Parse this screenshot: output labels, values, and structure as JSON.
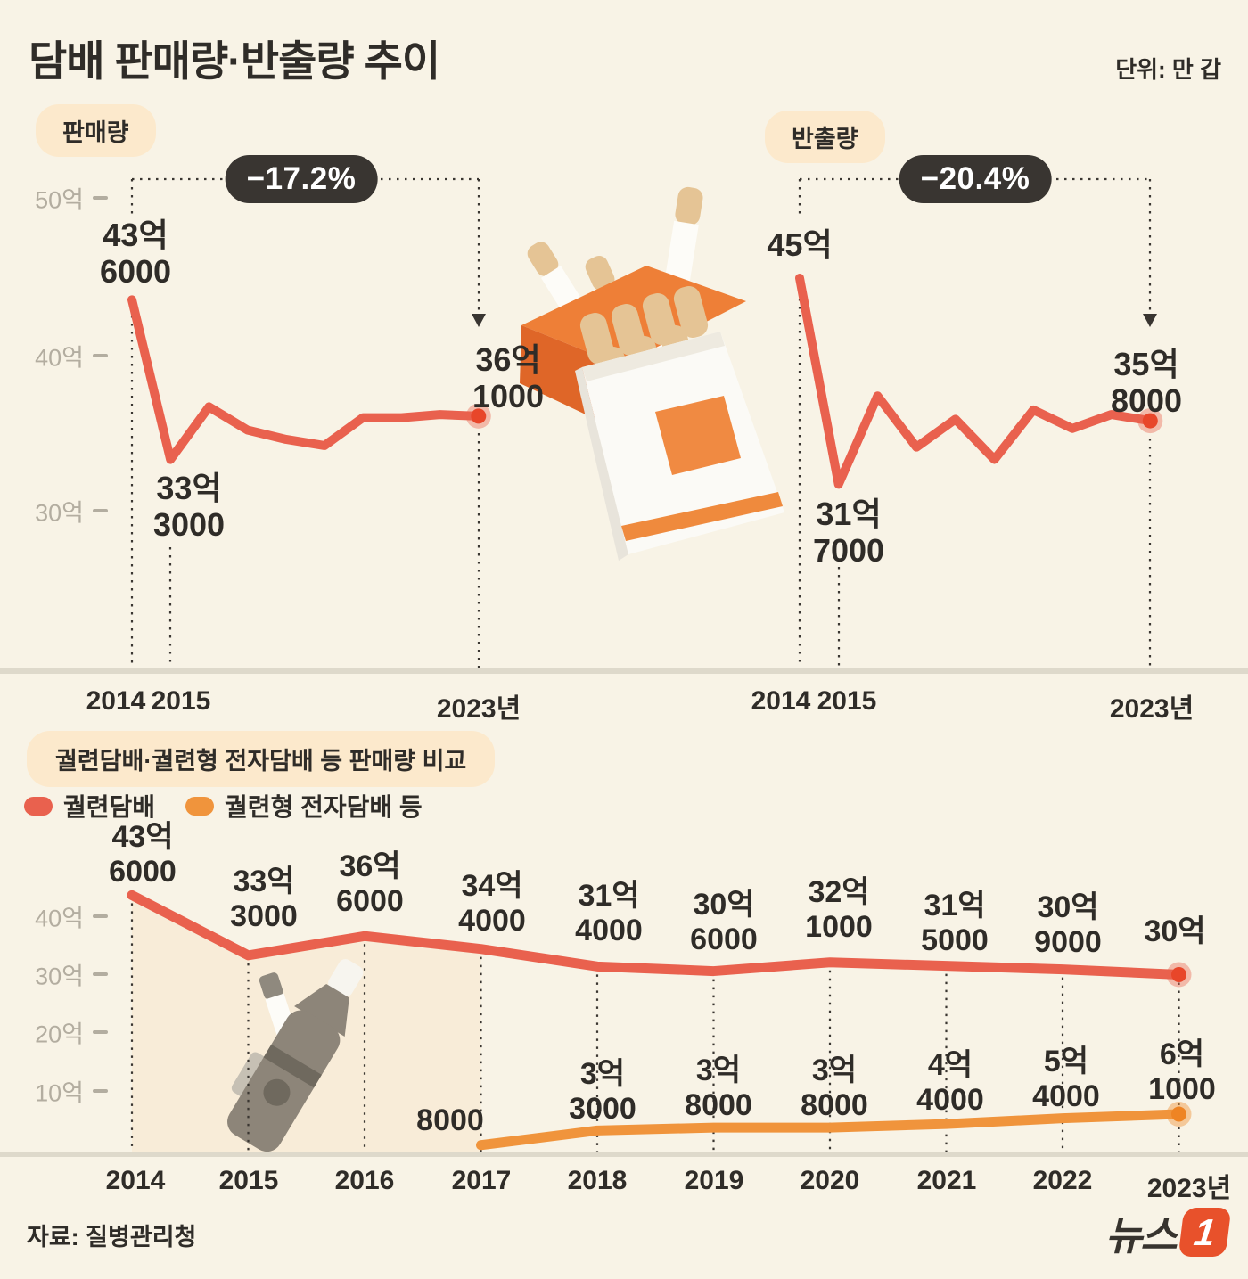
{
  "meta": {
    "title": "담배 판매량·반출량 추이",
    "unit_label": "단위: 만 갑",
    "source": "자료: 질병관리청",
    "logo_text": "뉴스",
    "logo_one": "1"
  },
  "colors": {
    "background": "#f8f3e6",
    "red_line": "#e9614e",
    "red_dot": "#e8462a",
    "orange_line": "#f0943c",
    "orange_dot": "#ee8424",
    "dark_badge": "#393531",
    "soft_badge": "#fce9cc",
    "axis_band": "#ded9cb",
    "gray_label": "#b3ada0",
    "shade": "#f8ecd8"
  },
  "sales": {
    "badge": "판매량",
    "change": "−17.2%",
    "start_label": "43억\n6000",
    "low_label": "33억\n3000",
    "end_label": "36억\n1000",
    "ylabels": [
      "50억",
      "40억",
      "30억"
    ],
    "xlabels": [
      "2014",
      "2015",
      "2023년"
    ]
  },
  "shipment": {
    "badge": "반출량",
    "change": "−20.4%",
    "start_label": "45억",
    "low_label": "31억\n7000",
    "end_label": "35억\n8000",
    "xlabels": [
      "2014",
      "2015",
      "2023년"
    ]
  },
  "comparison": {
    "badge": "궐련담배·궐련형 전자담배 등 판매량 비교",
    "legend": [
      {
        "label": "궐련담배",
        "color": "#e9614e"
      },
      {
        "label": "궐련형 전자담배 등",
        "color": "#f0943c"
      }
    ],
    "ylabels": [
      "40억",
      "30억",
      "20억",
      "10억"
    ],
    "xlabels": [
      "2014",
      "2015",
      "2016",
      "2017",
      "2018",
      "2019",
      "2020",
      "2021",
      "2022",
      "2023년"
    ],
    "red_labels": [
      "43억\n6000",
      "33억\n3000",
      "36억\n6000",
      "34억\n4000",
      "31억\n4000",
      "30억\n6000",
      "32억\n1000",
      "31억\n5000",
      "30억\n9000",
      "30억"
    ],
    "orange_labels": [
      "8000",
      "3억\n3000",
      "3억\n8000",
      "3억\n8000",
      "4억\n4000",
      "5억\n4000",
      "6억\n1000"
    ]
  },
  "chart_data": [
    {
      "id": "sales",
      "type": "line",
      "title": "판매량",
      "unit": "만 갑",
      "x": [
        2014,
        2015,
        2016,
        2017,
        2018,
        2019,
        2020,
        2021,
        2022,
        2023
      ],
      "series": [
        {
          "name": "판매량",
          "color": "#e9614e",
          "dot_color": "#e8462a",
          "dot_halo": "rgba(233,97,78,0.4)",
          "values": [
            43.6,
            33.3,
            36.7,
            35.2,
            34.6,
            34.2,
            36.0,
            36.0,
            36.2,
            36.1
          ]
        }
      ],
      "yticks": [
        30,
        40,
        50
      ],
      "ylim": [
        28,
        52
      ],
      "annotations": {
        "change_pct": -17.2,
        "start": "43억6000",
        "low_2015": "33억3000",
        "end_2023": "36억1000"
      }
    },
    {
      "id": "shipment",
      "type": "line",
      "title": "반출량",
      "unit": "만 갑",
      "x": [
        2014,
        2015,
        2016,
        2017,
        2018,
        2019,
        2020,
        2021,
        2022,
        2023
      ],
      "series": [
        {
          "name": "반출량",
          "color": "#e9614e",
          "dot_color": "#e8462a",
          "dot_halo": "rgba(233,97,78,0.4)",
          "values": [
            45.0,
            31.7,
            37.4,
            34.1,
            35.9,
            33.3,
            36.5,
            35.3,
            36.2,
            35.8
          ]
        }
      ],
      "yticks": [
        30,
        40,
        50
      ],
      "ylim": [
        28,
        52
      ],
      "annotations": {
        "change_pct": -20.4,
        "start": "45억",
        "low_2015": "31억7000",
        "end_2023": "35억8000"
      }
    },
    {
      "id": "comparison",
      "type": "line",
      "title": "궐련담배·궐련형 전자담배 등 판매량 비교",
      "unit": "만 갑",
      "x": [
        2014,
        2015,
        2016,
        2017,
        2018,
        2019,
        2020,
        2021,
        2022,
        2023
      ],
      "series": [
        {
          "name": "궐련담배",
          "color": "#e9614e",
          "dot_color": "#e8462a",
          "dot_halo": "rgba(233,97,78,0.4)",
          "values": [
            43.6,
            33.3,
            36.6,
            34.4,
            31.4,
            30.6,
            32.1,
            31.5,
            30.9,
            30.0
          ]
        },
        {
          "name": "궐련형 전자담배 등",
          "color": "#f0943c",
          "dot_color": "#ee8424",
          "dot_halo": "rgba(240,148,60,0.45)",
          "values": [
            null,
            null,
            null,
            0.8,
            3.3,
            3.8,
            3.8,
            4.4,
            5.4,
            6.1
          ]
        }
      ],
      "yticks": [
        10,
        20,
        30,
        40
      ],
      "ylim": [
        0,
        45
      ],
      "legend_position": "top-left",
      "shaded_region_years": [
        2014,
        2017
      ]
    }
  ]
}
